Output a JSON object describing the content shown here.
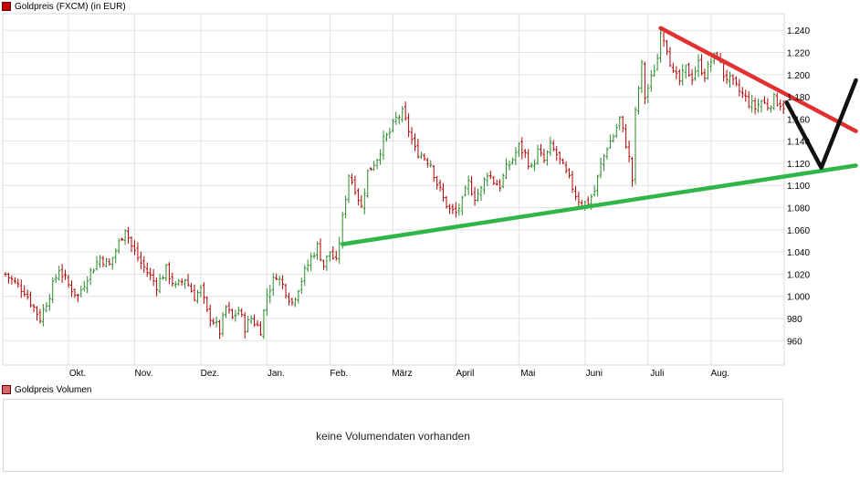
{
  "price_legend": {
    "label": "Goldpreis (FXCM) (in EUR)",
    "color": "#c00000"
  },
  "volume_legend": {
    "label": "Goldpreis Volumen",
    "color": "#d36a6a"
  },
  "volume_panel": {
    "message": "keine Volumendaten vorhanden"
  },
  "chart_data": {
    "type": "ohlc",
    "title": "Goldpreis (FXCM) (in EUR)",
    "ylim": [
      938,
      1255
    ],
    "yticks": [
      960,
      980,
      1000,
      1020,
      1040,
      1060,
      1080,
      1100,
      1120,
      1140,
      1160,
      1180,
      1200,
      1220,
      1240
    ],
    "ytick_labels": [
      "960",
      "980",
      "1.000",
      "1.020",
      "1.040",
      "1.060",
      "1.080",
      "1.100",
      "1.120",
      "1.140",
      "1.160",
      "1.180",
      "1.200",
      "1.220",
      "1.240"
    ],
    "months": [
      "Okt.",
      "Nov.",
      "Dez.",
      "Jan.",
      "Feb.",
      "März",
      "April",
      "Mai",
      "Juni",
      "Juli",
      "Aug."
    ],
    "month_index": [
      20,
      41,
      62,
      83,
      103,
      123,
      143,
      163,
      184,
      204,
      224
    ],
    "n_days": 248,
    "up_color": "#2b8a2b",
    "down_color": "#b00000",
    "close_anchors": [
      [
        0,
        1020
      ],
      [
        3,
        1012
      ],
      [
        6,
        1005
      ],
      [
        9,
        990
      ],
      [
        11,
        980
      ],
      [
        14,
        1002
      ],
      [
        17,
        1025
      ],
      [
        20,
        1010
      ],
      [
        23,
        1000
      ],
      [
        26,
        1018
      ],
      [
        30,
        1035
      ],
      [
        33,
        1028
      ],
      [
        36,
        1048
      ],
      [
        38,
        1062
      ],
      [
        40,
        1045
      ],
      [
        43,
        1030
      ],
      [
        46,
        1018
      ],
      [
        48,
        1010
      ],
      [
        51,
        1024
      ],
      [
        54,
        1008
      ],
      [
        57,
        1016
      ],
      [
        60,
        1000
      ],
      [
        62,
        1006
      ],
      [
        64,
        985
      ],
      [
        66,
        978
      ],
      [
        68,
        968
      ],
      [
        70,
        990
      ],
      [
        72,
        980
      ],
      [
        74,
        988
      ],
      [
        76,
        972
      ],
      [
        78,
        980
      ],
      [
        81,
        970
      ],
      [
        83,
        1002
      ],
      [
        86,
        1020
      ],
      [
        89,
        1005
      ],
      [
        91,
        994
      ],
      [
        93,
        1008
      ],
      [
        95,
        1022
      ],
      [
        97,
        1035
      ],
      [
        99,
        1045
      ],
      [
        101,
        1028
      ],
      [
        103,
        1040
      ],
      [
        105,
        1030
      ],
      [
        107,
        1070
      ],
      [
        109,
        1110
      ],
      [
        111,
        1098
      ],
      [
        113,
        1080
      ],
      [
        115,
        1112
      ],
      [
        118,
        1125
      ],
      [
        120,
        1140
      ],
      [
        122,
        1148
      ],
      [
        124,
        1160
      ],
      [
        126,
        1165
      ],
      [
        128,
        1150
      ],
      [
        130,
        1132
      ],
      [
        132,
        1128
      ],
      [
        135,
        1120
      ],
      [
        137,
        1102
      ],
      [
        139,
        1088
      ],
      [
        141,
        1078
      ],
      [
        143,
        1075
      ],
      [
        145,
        1085
      ],
      [
        147,
        1102
      ],
      [
        149,
        1090
      ],
      [
        151,
        1096
      ],
      [
        153,
        1112
      ],
      [
        155,
        1104
      ],
      [
        157,
        1100
      ],
      [
        159,
        1115
      ],
      [
        161,
        1124
      ],
      [
        163,
        1135
      ],
      [
        165,
        1128
      ],
      [
        167,
        1115
      ],
      [
        169,
        1130
      ],
      [
        171,
        1122
      ],
      [
        173,
        1135
      ],
      [
        175,
        1128
      ],
      [
        177,
        1116
      ],
      [
        179,
        1105
      ],
      [
        181,
        1092
      ],
      [
        183,
        1083
      ],
      [
        185,
        1085
      ],
      [
        187,
        1095
      ],
      [
        189,
        1118
      ],
      [
        191,
        1135
      ],
      [
        193,
        1145
      ],
      [
        195,
        1160
      ],
      [
        197,
        1138
      ],
      [
        198,
        1124
      ],
      [
        199,
        1105
      ],
      [
        200,
        1165
      ],
      [
        201,
        1188
      ],
      [
        202,
        1208
      ],
      [
        203,
        1180
      ],
      [
        205,
        1196
      ],
      [
        207,
        1215
      ],
      [
        208,
        1242
      ],
      [
        210,
        1225
      ],
      [
        212,
        1200
      ],
      [
        214,
        1194
      ],
      [
        216,
        1205
      ],
      [
        218,
        1198
      ],
      [
        220,
        1210
      ],
      [
        222,
        1200
      ],
      [
        224,
        1212
      ],
      [
        226,
        1218
      ],
      [
        228,
        1200
      ],
      [
        230,
        1195
      ],
      [
        232,
        1188
      ],
      [
        234,
        1182
      ],
      [
        236,
        1175
      ],
      [
        238,
        1170
      ],
      [
        240,
        1176
      ],
      [
        242,
        1172
      ],
      [
        244,
        1178
      ],
      [
        247,
        1172
      ]
    ],
    "overlays": [
      {
        "name": "support-trendline",
        "color": "#2fb548",
        "points": [
          [
            107,
            1047
          ],
          [
            270,
            1118
          ]
        ]
      },
      {
        "name": "resistance-trendline",
        "color": "#e03030",
        "points": [
          [
            208,
            1242
          ],
          [
            270,
            1149
          ]
        ]
      },
      {
        "name": "projection-path",
        "color": "#111111",
        "points": [
          [
            248,
            1175
          ],
          [
            259,
            1116
          ],
          [
            270,
            1195
          ]
        ]
      }
    ]
  }
}
